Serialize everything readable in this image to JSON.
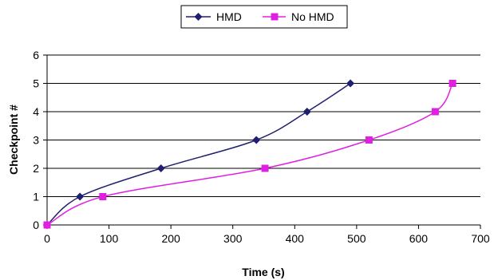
{
  "chart_data": {
    "type": "line",
    "xlabel": "Time (s)",
    "ylabel": "Checkpoint #",
    "xlim": [
      0,
      700
    ],
    "ylim": [
      0,
      6
    ],
    "xticks": [
      "0",
      "100",
      "200",
      "300",
      "400",
      "500",
      "600",
      "700"
    ],
    "yticks": [
      "0",
      "1",
      "2",
      "3",
      "4",
      "5",
      "6"
    ],
    "grid": "horizontal",
    "legend_position": "top-center",
    "series": [
      {
        "name": "HMD",
        "color": "#1f1f6f",
        "marker": "diamond",
        "points": [
          [
            0,
            0
          ],
          [
            53,
            1
          ],
          [
            184,
            2
          ],
          [
            338,
            3
          ],
          [
            420,
            4
          ],
          [
            490,
            5
          ]
        ]
      },
      {
        "name": "No HMD",
        "color": "#e020e0",
        "marker": "square",
        "points": [
          [
            0,
            0
          ],
          [
            90,
            1
          ],
          [
            352,
            2
          ],
          [
            520,
            3
          ],
          [
            627,
            4
          ],
          [
            655,
            5
          ]
        ]
      }
    ]
  }
}
